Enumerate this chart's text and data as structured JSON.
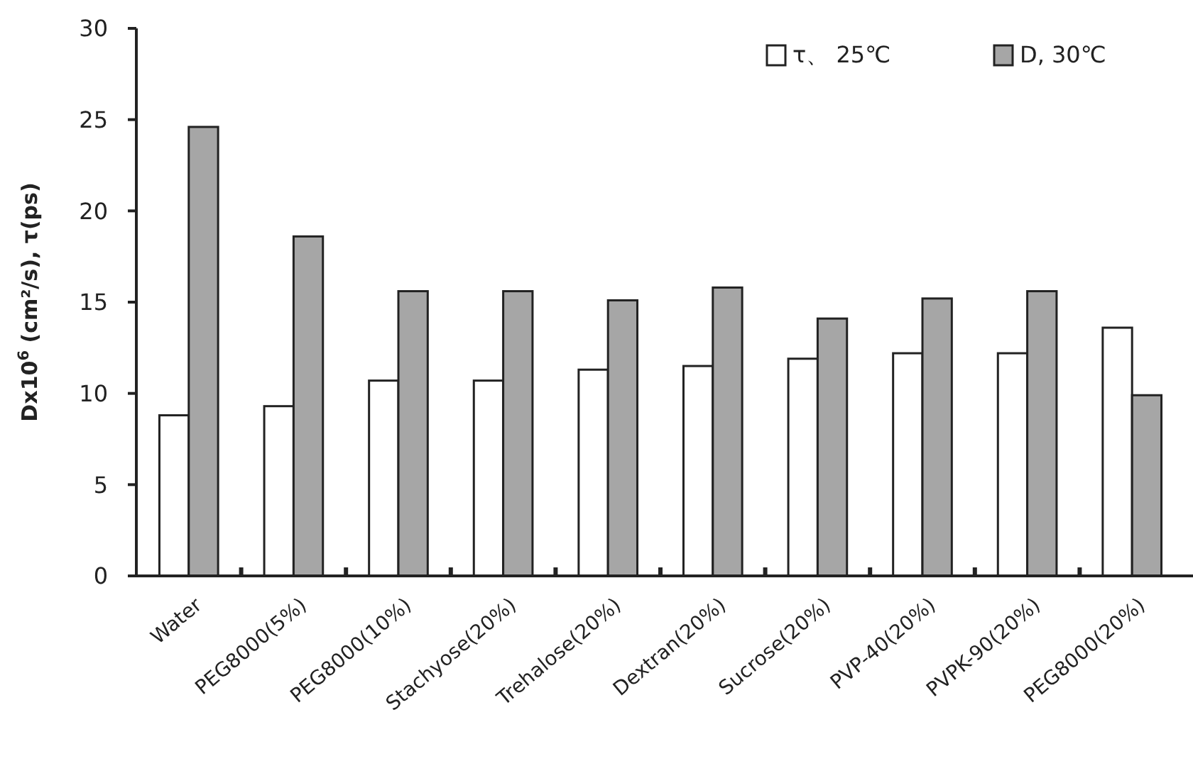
{
  "chart_data": {
    "type": "bar",
    "ylabel": "Dx10$^{6}$ (cm²/s), τ(ps)",
    "categories": [
      "Water",
      "PEG8000(5%)",
      "PEG8000(10%)",
      "Stachyose(20%)",
      "Trehalose(20%)",
      "Dextran(20%)",
      "Sucrose(20%)",
      "PVP-40(20%)",
      "PVPK-90(20%)",
      "PEG8000(20%)"
    ],
    "series": [
      {
        "name": "τ、 25℃",
        "color": "#ffffff",
        "values": [
          8.8,
          9.3,
          10.7,
          10.7,
          11.3,
          11.5,
          11.9,
          12.2,
          12.2,
          13.6
        ]
      },
      {
        "name": "D, 30℃",
        "color": "#a6a6a6",
        "values": [
          24.6,
          18.6,
          15.6,
          15.6,
          15.1,
          15.8,
          14.1,
          15.2,
          15.6,
          9.9
        ]
      }
    ],
    "ylim": [
      0,
      30
    ],
    "yticks": [
      0,
      5,
      10,
      15,
      20,
      25,
      30
    ],
    "grid": false,
    "legend": "top right"
  }
}
